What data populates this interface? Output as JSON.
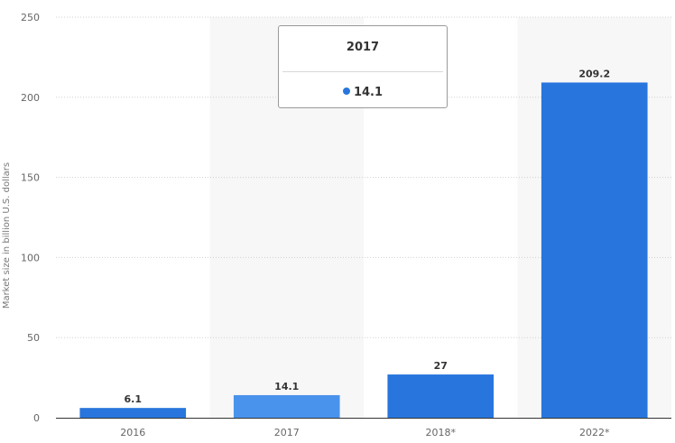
{
  "chart_data": {
    "type": "bar",
    "categories": [
      "2016",
      "2017",
      "2018*",
      "2022*"
    ],
    "values": [
      6.1,
      14.1,
      27,
      209.2
    ],
    "data_labels": [
      "6.1",
      "14.1",
      "27",
      "209.2"
    ],
    "ylabel": "Market size in billion U.S. dollars",
    "ylim": [
      0,
      250
    ],
    "yticks": [
      0,
      50,
      100,
      150,
      200,
      250
    ],
    "grid": true,
    "highlighted_index": 1,
    "colors": {
      "bar": "#2876dd",
      "bar_highlight": "#4a93ec",
      "grid": "#d0d0d0",
      "band": "#f7f7f7"
    }
  },
  "tooltip": {
    "title": "2017",
    "value": "14.1",
    "dot_color": "#2876dd"
  }
}
